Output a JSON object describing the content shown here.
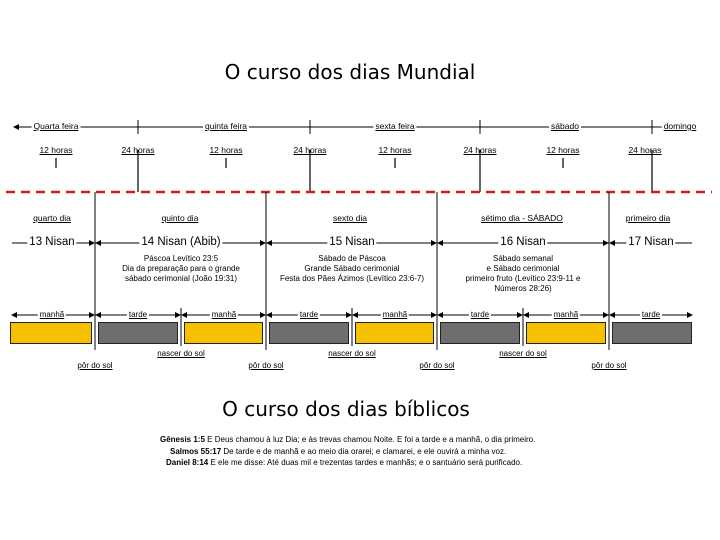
{
  "top_title": "O curso dos dias Mundial",
  "bottom_title": "O curso dos dias bíblicos",
  "world_days": [
    "Quarta feira",
    "quinta feira",
    "sexta feira",
    "sábado",
    "domingo"
  ],
  "hours": [
    "12 horas",
    "24 horas",
    "12 horas",
    "24 horas",
    "12 horas",
    "24 horas",
    "12 horas",
    "24 horas"
  ],
  "biblical_days": [
    "quarto dia",
    "quinto dia",
    "sexto dia",
    "sétimo dia - SÁBADO",
    "primeiro dia"
  ],
  "nisan": [
    "13 Nisan",
    "14 Nisan (Abib)",
    "15 Nisan",
    "16 Nisan",
    "17 Nisan"
  ],
  "notes": {
    "n14": [
      "Páscoa Levítico 23:5",
      "Dia da preparação para o grande",
      "sábado cerimonial (João 19:31)"
    ],
    "n15": [
      "Sábado de Páscoa",
      "Grande Sábado cerimonial",
      "Festa dos Pães Ázimos (Levítico 23:6-7)"
    ],
    "n16": [
      "Sábado semanal",
      "e Sábado cerimonial",
      "primeiro fruto (Levítico 23:9-11 e",
      "Números 28:26)"
    ]
  },
  "periods": [
    "manhã",
    "tarde",
    "manhã",
    "tarde",
    "manhã",
    "tarde",
    "manhã",
    "tarde"
  ],
  "sun_events": {
    "sunrise": "nascer do sol",
    "sunset": "pôr do sol"
  },
  "verses": [
    {
      "ref": "Gênesis 1:5",
      "text": "E Deus chamou à luz Dia; e às trevas chamou Noite. E foi a tarde e a manhã, o dia primeiro."
    },
    {
      "ref": "Salmos 55:17",
      "text": "De tarde e de manhã e ao meio dia orarei; e clamarei, e ele ouvirá a minha voz."
    },
    {
      "ref": "Daniel 8:14",
      "text": "E ele me disse: Até duas mil e trezentas tardes e manhãs; e o santuário será purificado."
    }
  ],
  "colors": {
    "morning": "#f5c000",
    "afternoon": "#6e6e6e",
    "divider": "#cc1f1f"
  }
}
